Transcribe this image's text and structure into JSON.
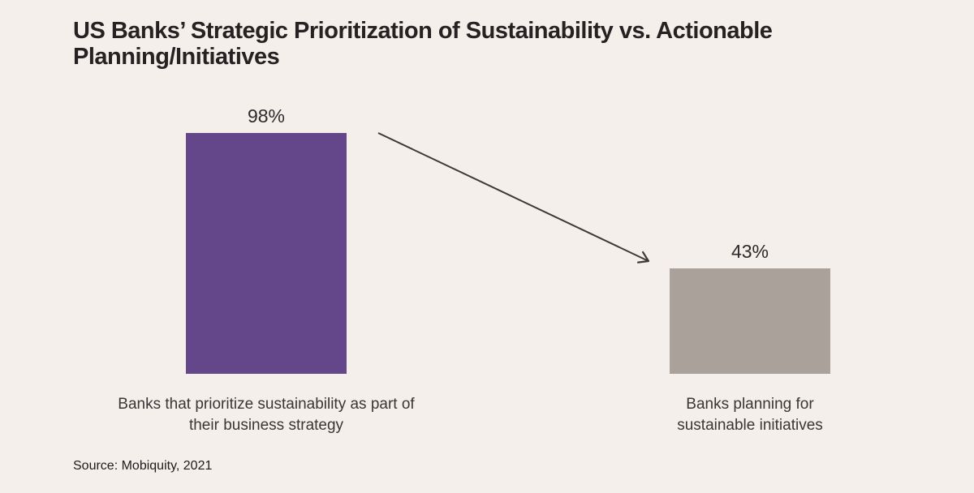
{
  "title": "US Banks’ Strategic Prioritization of Sustainability vs. Actionable\nPlanning/Initiatives",
  "source": "Source: Mobiquity, 2021",
  "chart_data": {
    "type": "bar",
    "title": "US Banks’ Strategic Prioritization of Sustainability vs. Actionable Planning/Initiatives",
    "categories": [
      "Banks that prioritize sustainability as part of their business strategy",
      "Banks planning for sustainable initiatives"
    ],
    "values": [
      98,
      43
    ],
    "value_labels": [
      "98%",
      "43%"
    ],
    "colors": [
      "#64478a",
      "#a9a19a"
    ],
    "background": "#f4efeb",
    "ylim": [
      0,
      100
    ],
    "axes_visible": false,
    "grid": false,
    "legend": false,
    "annotations": [
      {
        "type": "arrow",
        "from_value": 98,
        "to_value": 43,
        "color": "#3e3938"
      }
    ],
    "source": "Source: Mobiquity, 2021"
  }
}
